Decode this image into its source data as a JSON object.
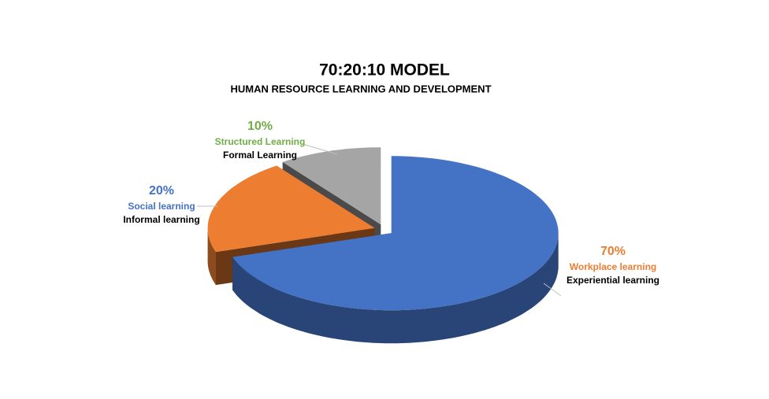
{
  "chart_data": {
    "type": "pie3d",
    "title": "70:20:10 MODEL",
    "subtitle": "HUMAN RESOURCE LEARNING AND DEVELOPMENT",
    "categories": [
      "Workplace learning",
      "Social learning",
      "Structured Learning"
    ],
    "sublabels": [
      "Experiential learning",
      "Informal learning",
      "Formal Learning"
    ],
    "values": [
      70,
      20,
      10
    ],
    "value_labels": [
      "70%",
      "20%",
      "10%"
    ],
    "colors": [
      "#4472c4",
      "#ed7d31",
      "#a5a5a5"
    ],
    "label_colors": [
      "#ed7d31",
      "#4472c4",
      "#70ad47"
    ]
  }
}
